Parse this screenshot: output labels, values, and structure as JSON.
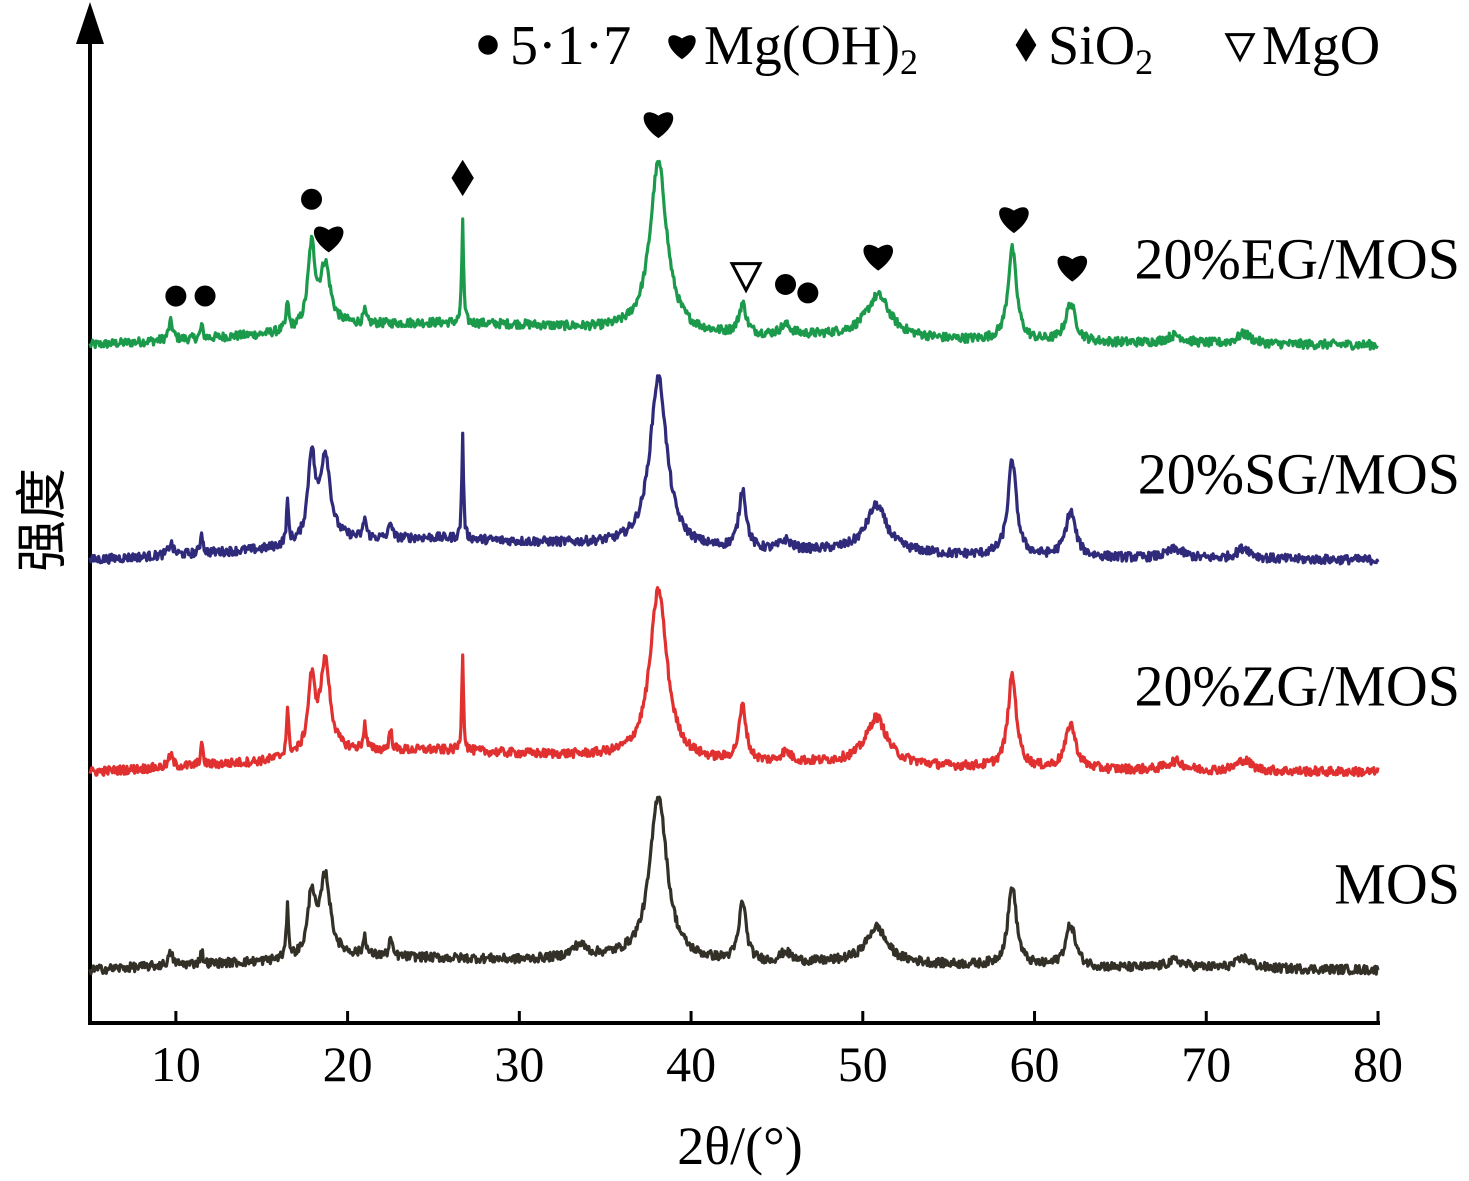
{
  "chart_data": {
    "type": "line",
    "title": "",
    "xlabel": "2θ/(°)",
    "ylabel": "强度",
    "xlim": [
      5,
      80
    ],
    "xticks": [
      10,
      20,
      30,
      40,
      50,
      60,
      70,
      80
    ],
    "y_scale": "stacked patterns, arbitrary intensity units",
    "grid": false,
    "legend": {
      "placement": "top",
      "entries": [
        {
          "symbol": "circle",
          "label": "5·1·7"
        },
        {
          "symbol": "heart",
          "label": "Mg(OH)",
          "subscript": "2"
        },
        {
          "symbol": "diamond",
          "label": "SiO",
          "subscript": "2"
        },
        {
          "symbol": "triangle-down-open",
          "label": "MgO"
        }
      ]
    },
    "series": [
      {
        "name": "20%EG/MOS",
        "color": "#1a9a4a",
        "baseline": 645,
        "background": [
          [
            5,
            0
          ],
          [
            10,
            5
          ],
          [
            15,
            10
          ],
          [
            20,
            20
          ],
          [
            25,
            22
          ],
          [
            30,
            20
          ],
          [
            35,
            15
          ],
          [
            40,
            10
          ],
          [
            45,
            8
          ],
          [
            50,
            10
          ],
          [
            55,
            5
          ],
          [
            60,
            3
          ],
          [
            65,
            2
          ],
          [
            70,
            1
          ],
          [
            80,
            0
          ]
        ],
        "peaks": [
          [
            9.7,
            18,
            0.15
          ],
          [
            11.5,
            13,
            0.08
          ],
          [
            16.5,
            28,
            0.08
          ],
          [
            17.9,
            80,
            0.25
          ],
          [
            18.7,
            60,
            0.35
          ],
          [
            21.0,
            12,
            0.1
          ],
          [
            26.7,
            105,
            0.06
          ],
          [
            38.1,
            170,
            0.6
          ],
          [
            43.0,
            30,
            0.25
          ],
          [
            45.5,
            10,
            0.4
          ],
          [
            50.9,
            40,
            0.8
          ],
          [
            58.7,
            92,
            0.3
          ],
          [
            62.1,
            38,
            0.35
          ],
          [
            68.2,
            8,
            0.6
          ],
          [
            72.2,
            10,
            0.5
          ]
        ]
      },
      {
        "name": "20%SG/MOS",
        "color": "#2f2a7a",
        "baseline": 430,
        "background": [
          [
            5,
            0
          ],
          [
            10,
            5
          ],
          [
            15,
            10
          ],
          [
            20,
            20
          ],
          [
            25,
            22
          ],
          [
            30,
            18
          ],
          [
            35,
            15
          ],
          [
            40,
            10
          ],
          [
            45,
            8
          ],
          [
            50,
            10
          ],
          [
            55,
            5
          ],
          [
            60,
            3
          ],
          [
            65,
            2
          ],
          [
            70,
            1
          ],
          [
            80,
            0
          ]
        ],
        "peaks": [
          [
            9.7,
            12,
            0.15
          ],
          [
            11.5,
            22,
            0.08
          ],
          [
            16.5,
            40,
            0.08
          ],
          [
            17.9,
            85,
            0.25
          ],
          [
            18.7,
            85,
            0.35
          ],
          [
            21.0,
            20,
            0.1
          ],
          [
            22.5,
            18,
            0.1
          ],
          [
            26.7,
            105,
            0.06
          ],
          [
            38.1,
            170,
            0.6
          ],
          [
            43.0,
            60,
            0.25
          ],
          [
            45.5,
            10,
            0.4
          ],
          [
            50.8,
            45,
            0.7
          ],
          [
            58.7,
            95,
            0.3
          ],
          [
            62.1,
            45,
            0.35
          ],
          [
            68.2,
            9,
            0.6
          ],
          [
            72.2,
            11,
            0.5
          ]
        ]
      },
      {
        "name": "20%ZG/MOS",
        "color": "#e03030",
        "baseline": 218,
        "background": [
          [
            5,
            0
          ],
          [
            10,
            5
          ],
          [
            15,
            10
          ],
          [
            20,
            20
          ],
          [
            25,
            22
          ],
          [
            30,
            18
          ],
          [
            35,
            15
          ],
          [
            40,
            10
          ],
          [
            45,
            8
          ],
          [
            50,
            10
          ],
          [
            55,
            5
          ],
          [
            60,
            3
          ],
          [
            65,
            2
          ],
          [
            70,
            1
          ],
          [
            80,
            0
          ]
        ],
        "peaks": [
          [
            9.7,
            12,
            0.15
          ],
          [
            11.5,
            22,
            0.08
          ],
          [
            16.5,
            45,
            0.08
          ],
          [
            17.9,
            70,
            0.25
          ],
          [
            18.7,
            90,
            0.35
          ],
          [
            21.0,
            25,
            0.1
          ],
          [
            22.5,
            20,
            0.1
          ],
          [
            26.7,
            100,
            0.06
          ],
          [
            38.1,
            170,
            0.6
          ],
          [
            43.0,
            55,
            0.25
          ],
          [
            45.5,
            10,
            0.4
          ],
          [
            50.8,
            45,
            0.7
          ],
          [
            58.7,
            92,
            0.3
          ],
          [
            62.1,
            45,
            0.35
          ],
          [
            68.2,
            9,
            0.6
          ],
          [
            72.2,
            11,
            0.5
          ]
        ]
      },
      {
        "name": "MOS",
        "color": "#333028",
        "baseline": 20,
        "background": [
          [
            5,
            0
          ],
          [
            10,
            5
          ],
          [
            15,
            8
          ],
          [
            20,
            14
          ],
          [
            25,
            12
          ],
          [
            30,
            10
          ],
          [
            35,
            12
          ],
          [
            40,
            8
          ],
          [
            45,
            6
          ],
          [
            50,
            8
          ],
          [
            55,
            5
          ],
          [
            60,
            3
          ],
          [
            65,
            2
          ],
          [
            70,
            2
          ],
          [
            80,
            0
          ]
        ],
        "peaks": [
          [
            9.7,
            12,
            0.15
          ],
          [
            11.5,
            14,
            0.08
          ],
          [
            16.5,
            50,
            0.08
          ],
          [
            17.9,
            62,
            0.25
          ],
          [
            18.7,
            80,
            0.35
          ],
          [
            21.0,
            20,
            0.1
          ],
          [
            22.5,
            18,
            0.1
          ],
          [
            33.5,
            12,
            0.5
          ],
          [
            38.1,
            165,
            0.6
          ],
          [
            43.0,
            60,
            0.25
          ],
          [
            45.5,
            10,
            0.4
          ],
          [
            50.8,
            35,
            0.7
          ],
          [
            58.7,
            80,
            0.3
          ],
          [
            62.1,
            42,
            0.35
          ],
          [
            68.2,
            7,
            0.6
          ],
          [
            72.2,
            10,
            0.5
          ]
        ]
      }
    ],
    "annotations": [
      {
        "symbol": "circle",
        "x": 10.0,
        "series": "20%EG/MOS"
      },
      {
        "symbol": "circle",
        "x": 11.7,
        "series": "20%EG/MOS"
      },
      {
        "symbol": "circle",
        "x": 17.9,
        "series": "20%EG/MOS"
      },
      {
        "symbol": "heart",
        "x": 18.9,
        "series": "20%EG/MOS"
      },
      {
        "symbol": "diamond",
        "x": 26.7,
        "series": "20%EG/MOS"
      },
      {
        "symbol": "heart",
        "x": 38.1,
        "series": "20%EG/MOS"
      },
      {
        "symbol": "triangle-down-open",
        "x": 43.2,
        "series": "20%EG/MOS"
      },
      {
        "symbol": "circle",
        "x": 45.5,
        "series": "20%EG/MOS"
      },
      {
        "symbol": "circle",
        "x": 46.8,
        "series": "20%EG/MOS"
      },
      {
        "symbol": "heart",
        "x": 50.9,
        "series": "20%EG/MOS"
      },
      {
        "symbol": "heart",
        "x": 58.8,
        "series": "20%EG/MOS"
      },
      {
        "symbol": "heart",
        "x": 62.2,
        "series": "20%EG/MOS"
      }
    ]
  }
}
